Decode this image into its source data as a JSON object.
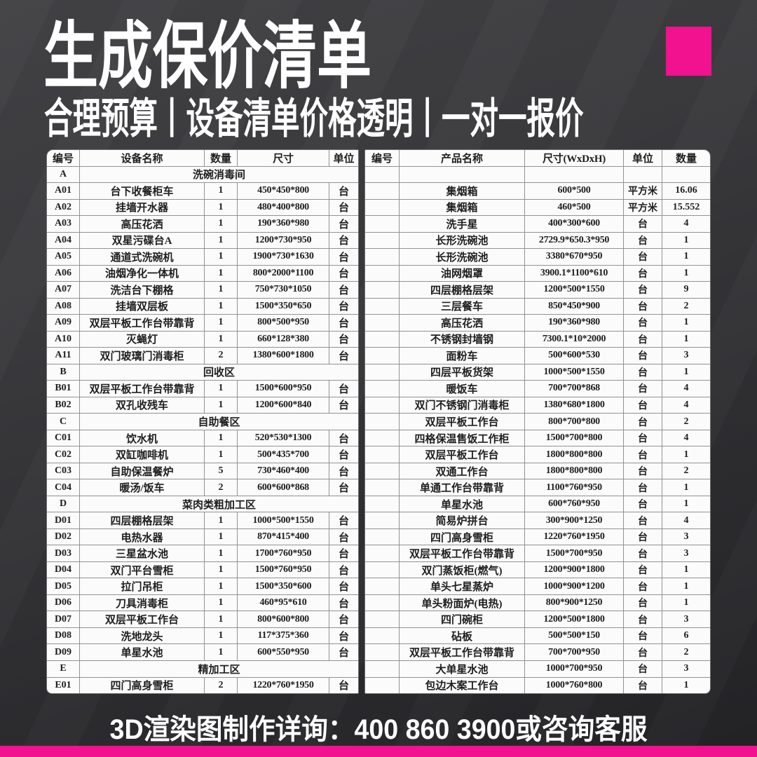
{
  "colors": {
    "accent": "#F2118E",
    "table_bg": "#FBFBFB",
    "page_dark": "#2D2D30",
    "text_dark": "#1E1E1E",
    "text_light": "#FFFFFF"
  },
  "header": {
    "title": "生成保价清单",
    "subtitle": "合理预算丨设备清单价格透明丨一对一报价"
  },
  "left_table": {
    "headers": [
      "编号",
      "设备名称",
      "数量",
      "尺寸",
      "单位"
    ],
    "rows": [
      {
        "type": "section",
        "code": "A",
        "label": "洗碗消毒间"
      },
      {
        "type": "item",
        "code": "A01",
        "name": "台下收餐柜车",
        "qty": "1",
        "size": "450*450*800",
        "unit": "台"
      },
      {
        "type": "item",
        "code": "A02",
        "name": "挂墙开水器",
        "qty": "1",
        "size": "480*400*800",
        "unit": "台"
      },
      {
        "type": "item",
        "code": "A03",
        "name": "高压花洒",
        "qty": "1",
        "size": "190*360*980",
        "unit": "台"
      },
      {
        "type": "item",
        "code": "A04",
        "name": "双星污碟台A",
        "qty": "1",
        "size": "1200*730*950",
        "unit": "台"
      },
      {
        "type": "item",
        "code": "A05",
        "name": "通道式洗碗机",
        "qty": "1",
        "size": "1900*730*1630",
        "unit": "台"
      },
      {
        "type": "item",
        "code": "A06",
        "name": "油烟净化一体机",
        "qty": "1",
        "size": "800*2000*1100",
        "unit": "台"
      },
      {
        "type": "item",
        "code": "A07",
        "name": "洗洁台下棚格",
        "qty": "1",
        "size": "750*730*1050",
        "unit": "台"
      },
      {
        "type": "item",
        "code": "A08",
        "name": "挂墙双层板",
        "qty": "1",
        "size": "1500*350*650",
        "unit": "台"
      },
      {
        "type": "item",
        "code": "A09",
        "name": "双层平板工作台带靠背",
        "qty": "1",
        "size": "800*500*950",
        "unit": "台"
      },
      {
        "type": "item",
        "code": "A10",
        "name": "灭蝇灯",
        "qty": "1",
        "size": "660*128*380",
        "unit": "台"
      },
      {
        "type": "item",
        "code": "A11",
        "name": "双门玻璃门消毒柜",
        "qty": "2",
        "size": "1380*600*1800",
        "unit": "台"
      },
      {
        "type": "section",
        "code": "B",
        "label": "回收区"
      },
      {
        "type": "item",
        "code": "B01",
        "name": "双层平板工作台带靠背",
        "qty": "1",
        "size": "1500*600*950",
        "unit": "台"
      },
      {
        "type": "item",
        "code": "B02",
        "name": "双孔收残车",
        "qty": "1",
        "size": "1200*600*840",
        "unit": "台"
      },
      {
        "type": "section",
        "code": "C",
        "label": "自助餐区"
      },
      {
        "type": "item",
        "code": "C01",
        "name": "饮水机",
        "qty": "1",
        "size": "520*530*1300",
        "unit": "台"
      },
      {
        "type": "item",
        "code": "C02",
        "name": "双缸咖啡机",
        "qty": "1",
        "size": "500*435*700",
        "unit": "台"
      },
      {
        "type": "item",
        "code": "C03",
        "name": "自助保温餐炉",
        "qty": "5",
        "size": "730*460*400",
        "unit": "台"
      },
      {
        "type": "item",
        "code": "C04",
        "name": "暖汤/饭车",
        "qty": "2",
        "size": "600*600*868",
        "unit": "台"
      },
      {
        "type": "section",
        "code": "D",
        "label": "菜肉类粗加工区"
      },
      {
        "type": "item",
        "code": "D01",
        "name": "四层棚格层架",
        "qty": "1",
        "size": "1000*500*1550",
        "unit": "台"
      },
      {
        "type": "item",
        "code": "D02",
        "name": "电热水器",
        "qty": "1",
        "size": "870*415*400",
        "unit": "台"
      },
      {
        "type": "item",
        "code": "D03",
        "name": "三星盆水池",
        "qty": "1",
        "size": "1700*760*950",
        "unit": "台"
      },
      {
        "type": "item",
        "code": "D04",
        "name": "双门平台雪柜",
        "qty": "1",
        "size": "1500*760*950",
        "unit": "台"
      },
      {
        "type": "item",
        "code": "D05",
        "name": "拉门吊柜",
        "qty": "1",
        "size": "1500*350*600",
        "unit": "台"
      },
      {
        "type": "item",
        "code": "D06",
        "name": "刀具消毒柜",
        "qty": "1",
        "size": "460*95*610",
        "unit": "台"
      },
      {
        "type": "item",
        "code": "D07",
        "name": "双层平板工作台",
        "qty": "1",
        "size": "800*600*800",
        "unit": "台"
      },
      {
        "type": "item",
        "code": "D08",
        "name": "洗地龙头",
        "qty": "1",
        "size": "117*375*360",
        "unit": "台"
      },
      {
        "type": "item",
        "code": "D09",
        "name": "单星水池",
        "qty": "1",
        "size": "600*550*950",
        "unit": "台"
      },
      {
        "type": "section",
        "code": "E",
        "label": "精加工区"
      },
      {
        "type": "item",
        "code": "E01",
        "name": "四门高身雪柜",
        "qty": "2",
        "size": "1220*760*1950",
        "unit": "台"
      }
    ]
  },
  "right_table": {
    "headers": [
      "编号",
      "产品名称",
      "尺寸(WxDxH)",
      "单位",
      "数量"
    ],
    "rows": [
      {
        "code": "",
        "name": "",
        "size": "",
        "unit": "",
        "qty": ""
      },
      {
        "code": "",
        "name": "集烟箱",
        "size": "600*500",
        "unit": "平方米",
        "qty": "16.06"
      },
      {
        "code": "",
        "name": "集烟箱",
        "size": "460*500",
        "unit": "平方米",
        "qty": "15.552"
      },
      {
        "code": "",
        "name": "洗手星",
        "size": "400*300*600",
        "unit": "台",
        "qty": "4"
      },
      {
        "code": "",
        "name": "长形洗碗池",
        "size": "2729.9*650.3*950",
        "unit": "台",
        "qty": "1"
      },
      {
        "code": "",
        "name": "长形洗碗池",
        "size": "3380*670*950",
        "unit": "台",
        "qty": "1"
      },
      {
        "code": "",
        "name": "油网烟罩",
        "size": "3900.1*1100*610",
        "unit": "台",
        "qty": "1"
      },
      {
        "code": "",
        "name": "四层棚格层架",
        "size": "1200*500*1550",
        "unit": "台",
        "qty": "9"
      },
      {
        "code": "",
        "name": "三层餐车",
        "size": "850*450*900",
        "unit": "台",
        "qty": "2"
      },
      {
        "code": "",
        "name": "高压花洒",
        "size": "190*360*980",
        "unit": "台",
        "qty": "1"
      },
      {
        "code": "",
        "name": "不锈钢封墙钢",
        "size": "7300.1*10*2000",
        "unit": "台",
        "qty": "1"
      },
      {
        "code": "",
        "name": "面粉车",
        "size": "500*600*530",
        "unit": "台",
        "qty": "3"
      },
      {
        "code": "",
        "name": "四层平板货架",
        "size": "1000*500*1550",
        "unit": "台",
        "qty": "1"
      },
      {
        "code": "",
        "name": "暖饭车",
        "size": "700*700*868",
        "unit": "台",
        "qty": "4"
      },
      {
        "code": "",
        "name": "双门不锈钢门消毒柜",
        "size": "1380*680*1800",
        "unit": "台",
        "qty": "4"
      },
      {
        "code": "",
        "name": "双层平板工作台",
        "size": "800*700*800",
        "unit": "台",
        "qty": "2"
      },
      {
        "code": "",
        "name": "四格保温售饭工作柜",
        "size": "1500*700*800",
        "unit": "台",
        "qty": "4"
      },
      {
        "code": "",
        "name": "双层平板工作台",
        "size": "1800*800*800",
        "unit": "台",
        "qty": "1"
      },
      {
        "code": "",
        "name": "双通工作台",
        "size": "1800*800*800",
        "unit": "台",
        "qty": "2"
      },
      {
        "code": "",
        "name": "单通工作台带靠背",
        "size": "1100*760*950",
        "unit": "台",
        "qty": "1"
      },
      {
        "code": "",
        "name": "单星水池",
        "size": "600*760*950",
        "unit": "台",
        "qty": "1"
      },
      {
        "code": "",
        "name": "简易炉拼台",
        "size": "300*900*1250",
        "unit": "台",
        "qty": "4"
      },
      {
        "code": "",
        "name": "四门高身雪柜",
        "size": "1220*760*1950",
        "unit": "台",
        "qty": "3"
      },
      {
        "code": "",
        "name": "双层平板工作台带靠背",
        "size": "1500*700*950",
        "unit": "台",
        "qty": "3"
      },
      {
        "code": "",
        "name": "双门蒸饭柜(燃气)",
        "size": "1200*900*1800",
        "unit": "台",
        "qty": "1"
      },
      {
        "code": "",
        "name": "单头七星蒸炉",
        "size": "1000*900*1200",
        "unit": "台",
        "qty": "1"
      },
      {
        "code": "",
        "name": "单头粉面炉(电热)",
        "size": "800*900*1250",
        "unit": "台",
        "qty": "1"
      },
      {
        "code": "",
        "name": "四门碗柜",
        "size": "1200*500*1800",
        "unit": "台",
        "qty": "3"
      },
      {
        "code": "",
        "name": "砧板",
        "size": "500*500*150",
        "unit": "台",
        "qty": "6"
      },
      {
        "code": "",
        "name": "双层平板工作台带靠背",
        "size": "700*700*950",
        "unit": "台",
        "qty": "2"
      },
      {
        "code": "",
        "name": "大单星水池",
        "size": "1000*700*950",
        "unit": "台",
        "qty": "3"
      },
      {
        "code": "",
        "name": "包边木案工作台",
        "size": "1000*760*800",
        "unit": "台",
        "qty": "1"
      }
    ]
  },
  "footer": {
    "text": "3D渲染图制作详询：400 860 3900或咨询客服"
  }
}
